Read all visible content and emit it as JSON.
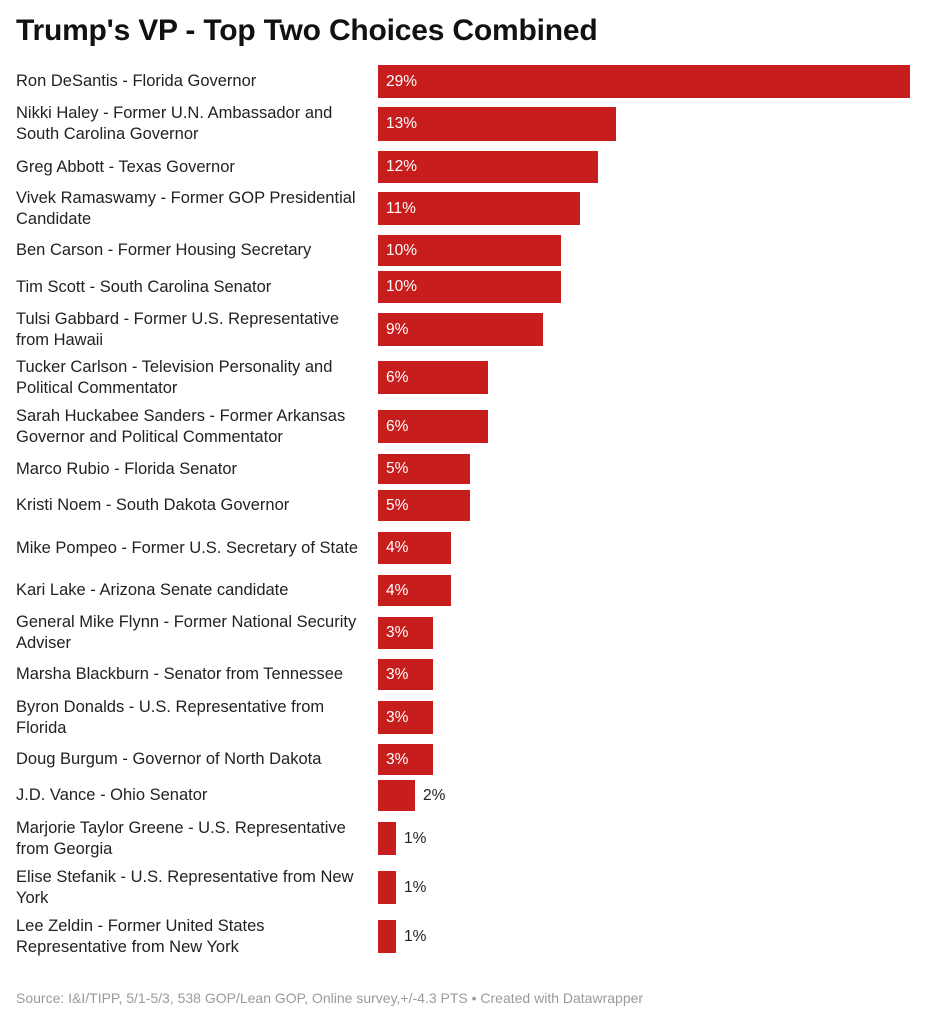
{
  "chart_data": {
    "type": "bar",
    "orientation": "horizontal",
    "title": "Trump's VP - Top Two Choices Combined",
    "categories": [
      "Ron DeSantis - Florida Governor",
      "Nikki Haley - Former U.N. Ambassador and South Carolina Governor",
      "Greg Abbott - Texas Governor",
      "Vivek Ramaswamy - Former GOP Presidential Candidate",
      "Ben Carson - Former Housing Secretary",
      "Tim Scott - South Carolina Senator",
      "Tulsi Gabbard - Former U.S. Representative from Hawaii",
      "Tucker Carlson - Television Personality and Political Commentator",
      "Sarah Huckabee Sanders - Former Arkansas Governor and Political Commentator",
      "Marco Rubio - Florida Senator",
      "Kristi Noem - South Dakota Governor",
      "Mike Pompeo - Former U.S. Secretary of State",
      "Kari Lake - Arizona Senate candidate",
      "General Mike Flynn - Former National Security Adviser",
      "Marsha Blackburn - Senator from Tennessee",
      "Byron Donalds - U.S. Representative from Florida",
      "Doug Burgum - Governor of North Dakota",
      "J.D. Vance - Ohio Senator",
      "Marjorie Taylor Greene - U.S. Representative from Georgia",
      "Elise Stefanik - U.S. Representative from New York",
      "Lee Zeldin - Former United States Representative from New York"
    ],
    "values": [
      29,
      13,
      12,
      11,
      10,
      10,
      9,
      6,
      6,
      5,
      5,
      4,
      4,
      3,
      3,
      3,
      3,
      2,
      1,
      1,
      1
    ],
    "value_labels": [
      "29%",
      "13%",
      "12%",
      "11%",
      "10%",
      "10%",
      "9%",
      "6%",
      "6%",
      "5%",
      "5%",
      "4%",
      "4%",
      "3%",
      "3%",
      "3%",
      "3%",
      "2%",
      "1%",
      "1%",
      "1%"
    ],
    "xlim": [
      0,
      29
    ],
    "grid": false,
    "legend": "none",
    "bar_color": "#c71e1d"
  },
  "footer": {
    "source": "Source: I&I/TIPP, 5/1-5/3, 538 GOP/Lean GOP, Online survey,+/-4.3 PTS • Created with Datawrapper"
  }
}
